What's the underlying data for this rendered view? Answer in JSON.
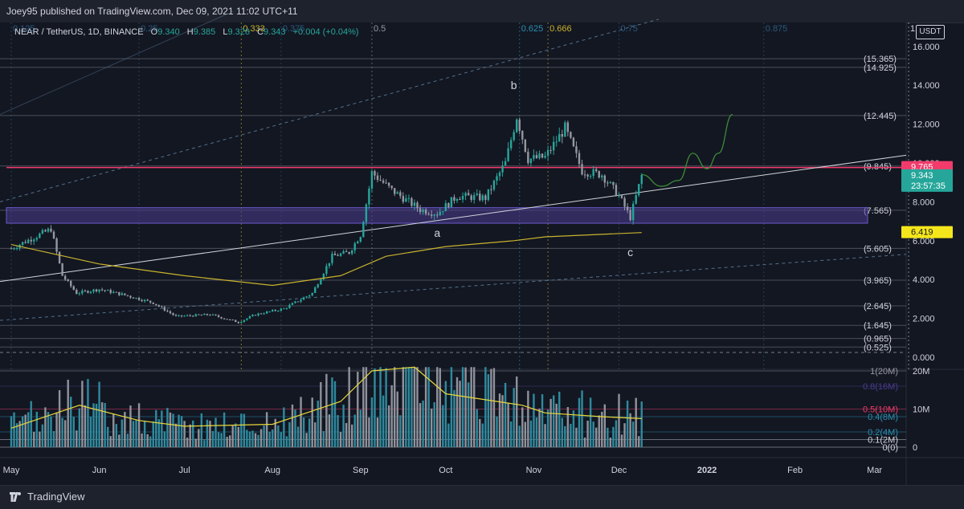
{
  "header": {
    "published": "Joey95 published on TradingView.com, Dec 09, 2021 11:02 UTC+11"
  },
  "legend": {
    "symbol": "NEAR / TetherUS, 1D, BINANCE",
    "open_label": "O",
    "open": "9.340",
    "high_label": "H",
    "high": "9.385",
    "low_label": "L",
    "low": "9.326",
    "close_label": "C",
    "close": "9.343",
    "change": "+0.004 (+0.04%)"
  },
  "currency": "USDT",
  "footer": {
    "brand": "TradingView"
  },
  "colors": {
    "background": "#131722",
    "up": "#26a69a",
    "down": "#9598a1",
    "ma": "#c9b32c",
    "resistance": "#f23b6b",
    "zone": "#4a3d8f",
    "trend": "#d1d4dc",
    "projection": "#3d8b37",
    "volume_up": "#2f8a9e",
    "volume_down": "#8f929b",
    "volume_ma": "#e8d83a",
    "fib": "#53708a"
  },
  "chart_data": {
    "type": "candlestick",
    "title": "",
    "ylim": [
      0,
      17
    ],
    "y_ticks": [
      "16.000",
      "14.000",
      "12.000",
      "10.000",
      "8.000",
      "6.000",
      "4.000",
      "2.000",
      "0.000"
    ],
    "x_ticks": [
      "May",
      "Jun",
      "Jul",
      "Aug",
      "Sep",
      "Oct",
      "Nov",
      "Dec",
      "2022",
      "Feb",
      "Mar"
    ],
    "x_tick_dates": [
      "2021-05-01",
      "2021-06-01",
      "2021-07-01",
      "2021-08-01",
      "2021-09-01",
      "2021-10-01",
      "2021-11-01",
      "2021-12-01",
      "2022-01-01",
      "2022-02-01",
      "2022-03-01"
    ],
    "last_price": "9.343",
    "countdown": "23:57:35",
    "resistance_price": "9.765",
    "ma_price": "6.419",
    "fib_levels": [
      {
        "label": "(15.365)",
        "value": 15.365
      },
      {
        "label": "(14.925)",
        "value": 14.925
      },
      {
        "label": "(12.445)",
        "value": 12.445
      },
      {
        "label": "(9.845)",
        "value": 9.845
      },
      {
        "label": "(7.565)",
        "value": 7.565
      },
      {
        "label": "(5.605)",
        "value": 5.605
      },
      {
        "label": "(3.965)",
        "value": 3.965
      },
      {
        "label": "(2.645)",
        "value": 2.645
      },
      {
        "label": "(1.645)",
        "value": 1.645
      },
      {
        "label": "(0.965)",
        "value": 0.965
      },
      {
        "label": "(0.525)",
        "value": 0.525
      }
    ],
    "fib_top_labels": [
      {
        "label": "0.125",
        "date": "2021-05-01",
        "color": "#2a5a80"
      },
      {
        "label": "0.25",
        "date": "2021-06-15",
        "color": "#2a5a80"
      },
      {
        "label": "0.333",
        "date": "2021-07-21",
        "color": "#c9b32c"
      },
      {
        "label": "0.375",
        "date": "2021-08-04",
        "color": "#2a5a80"
      },
      {
        "label": "0.5",
        "date": "2021-09-05",
        "color": "#9598a1"
      },
      {
        "label": "0.625",
        "date": "2021-10-27",
        "color": "#2a8fb0"
      },
      {
        "label": "0.666",
        "date": "2021-11-06",
        "color": "#c9b32c"
      },
      {
        "label": "0.75",
        "date": "2021-12-01",
        "color": "#2a5a80"
      },
      {
        "label": "0.875",
        "date": "2022-01-21",
        "color": "#2a5a80"
      },
      {
        "label": "1",
        "date": "2022-03-13",
        "color": "#d1d4dc"
      }
    ],
    "wave_labels": [
      {
        "label": "a",
        "date": "2021-09-28",
        "value": 6.2
      },
      {
        "label": "b",
        "date": "2021-10-25",
        "value": 13.8
      },
      {
        "label": "c",
        "date": "2021-12-05",
        "value": 5.2
      }
    ],
    "demand_zone": [
      6.9,
      7.7
    ],
    "series_close": [
      {
        "date": "2021-05-01",
        "value": 5.6
      },
      {
        "date": "2021-05-08",
        "value": 6.1
      },
      {
        "date": "2021-05-15",
        "value": 6.6
      },
      {
        "date": "2021-05-19",
        "value": 4.2
      },
      {
        "date": "2021-05-24",
        "value": 3.3
      },
      {
        "date": "2021-06-01",
        "value": 3.5
      },
      {
        "date": "2021-06-10",
        "value": 3.2
      },
      {
        "date": "2021-06-20",
        "value": 2.8
      },
      {
        "date": "2021-06-28",
        "value": 2.1
      },
      {
        "date": "2021-07-10",
        "value": 2.2
      },
      {
        "date": "2021-07-20",
        "value": 1.8
      },
      {
        "date": "2021-07-26",
        "value": 2.2
      },
      {
        "date": "2021-08-05",
        "value": 2.5
      },
      {
        "date": "2021-08-15",
        "value": 3.3
      },
      {
        "date": "2021-08-22",
        "value": 5.2
      },
      {
        "date": "2021-08-28",
        "value": 5.4
      },
      {
        "date": "2021-09-01",
        "value": 6.3
      },
      {
        "date": "2021-09-05",
        "value": 9.5
      },
      {
        "date": "2021-09-12",
        "value": 8.6
      },
      {
        "date": "2021-09-22",
        "value": 7.6
      },
      {
        "date": "2021-09-28",
        "value": 7.4
      },
      {
        "date": "2021-10-05",
        "value": 8.3
      },
      {
        "date": "2021-10-15",
        "value": 8.2
      },
      {
        "date": "2021-10-22",
        "value": 10.0
      },
      {
        "date": "2021-10-26",
        "value": 12.4
      },
      {
        "date": "2021-10-30",
        "value": 10.2
      },
      {
        "date": "2021-11-05",
        "value": 10.3
      },
      {
        "date": "2021-11-12",
        "value": 11.8
      },
      {
        "date": "2021-11-18",
        "value": 9.6
      },
      {
        "date": "2021-11-25",
        "value": 9.4
      },
      {
        "date": "2021-12-01",
        "value": 8.3
      },
      {
        "date": "2021-12-05",
        "value": 7.2
      },
      {
        "date": "2021-12-09",
        "value": 9.343
      }
    ],
    "ma_series": [
      {
        "date": "2021-05-01",
        "value": 5.8
      },
      {
        "date": "2021-06-01",
        "value": 4.8
      },
      {
        "date": "2021-07-01",
        "value": 4.2
      },
      {
        "date": "2021-08-01",
        "value": 3.7
      },
      {
        "date": "2021-08-25",
        "value": 4.2
      },
      {
        "date": "2021-09-10",
        "value": 5.2
      },
      {
        "date": "2021-10-01",
        "value": 5.7
      },
      {
        "date": "2021-10-25",
        "value": 6.0
      },
      {
        "date": "2021-11-05",
        "value": 6.2
      },
      {
        "date": "2021-12-09",
        "value": 6.419
      }
    ],
    "projection": [
      {
        "date": "2021-12-09",
        "value": 9.4
      },
      {
        "date": "2021-12-16",
        "value": 8.8
      },
      {
        "date": "2021-12-22",
        "value": 9.1
      },
      {
        "date": "2021-12-27",
        "value": 10.5
      },
      {
        "date": "2022-01-01",
        "value": 9.7
      },
      {
        "date": "2022-01-05",
        "value": 10.5
      },
      {
        "date": "2022-01-10",
        "value": 12.5
      }
    ],
    "trendline": [
      {
        "date": "2021-05-01",
        "value": 3.9
      },
      {
        "date": "2022-03-20",
        "value": 10.4
      }
    ],
    "volume": {
      "y_ticks": [
        "20M",
        "10M",
        "0"
      ],
      "fib_labels": [
        {
          "label": "1(20M)",
          "value": 20,
          "color": "#9598a1"
        },
        {
          "label": "0.8(16M)",
          "value": 16,
          "color": "#4a3d8f"
        },
        {
          "label": "0.5(10M)",
          "value": 10,
          "color": "#f23b6b"
        },
        {
          "label": "0.4(8M)",
          "value": 8,
          "color": "#2a8fb0"
        },
        {
          "label": "0.2(4M)",
          "value": 4,
          "color": "#2a8fb0"
        },
        {
          "label": "0.1(2M)",
          "value": 2,
          "color": "#d1d4dc"
        },
        {
          "label": "0(0)",
          "value": 0,
          "color": "#d1d4dc"
        }
      ],
      "ylim": [
        0,
        21
      ],
      "ma_series": [
        {
          "date": "2021-05-01",
          "value": 5
        },
        {
          "date": "2021-05-25",
          "value": 11
        },
        {
          "date": "2021-06-15",
          "value": 7
        },
        {
          "date": "2021-07-01",
          "value": 5.5
        },
        {
          "date": "2021-08-01",
          "value": 6
        },
        {
          "date": "2021-08-25",
          "value": 12
        },
        {
          "date": "2021-09-05",
          "value": 20
        },
        {
          "date": "2021-09-20",
          "value": 21
        },
        {
          "date": "2021-10-01",
          "value": 14
        },
        {
          "date": "2021-10-28",
          "value": 11
        },
        {
          "date": "2021-11-05",
          "value": 9
        },
        {
          "date": "2021-11-25",
          "value": 8
        },
        {
          "date": "2021-12-09",
          "value": 7.5
        }
      ]
    }
  }
}
